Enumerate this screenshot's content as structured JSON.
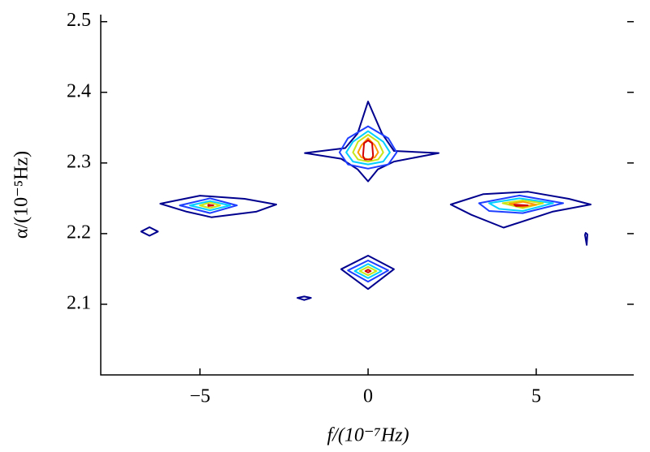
{
  "chart_data": {
    "type": "contour",
    "xlabel": "f/(10⁻⁷Hz)",
    "ylabel": "α/(10⁻⁵Hz)",
    "xlim": [
      -7.95,
      7.9
    ],
    "ylim": [
      2.0,
      2.51
    ],
    "xticks": [
      {
        "value": -5,
        "label": "−5"
      },
      0,
      5
    ],
    "yticks": [
      2.1,
      2.2,
      2.3,
      2.4,
      2.5
    ],
    "series": [
      {
        "color": "#00008f",
        "x": [
          0,
          0.41,
          0.77,
          2.1,
          0.77,
          0.29,
          0,
          -0.31,
          -0.8,
          -1.88,
          -0.68,
          -0.31
        ],
        "y": [
          2.387,
          2.342,
          2.317,
          2.314,
          2.302,
          2.291,
          2.274,
          2.291,
          2.306,
          2.314,
          2.321,
          2.342
        ]
      },
      {
        "color": "#1f3fff",
        "x": [
          0,
          0.6,
          0.85,
          0.6,
          0,
          -0.6,
          -0.85,
          -0.6
        ],
        "y": [
          2.352,
          2.335,
          2.315,
          2.298,
          2.292,
          2.298,
          2.315,
          2.335
        ]
      },
      {
        "color": "#00cfff",
        "x": [
          0,
          0.45,
          0.65,
          0.45,
          0,
          -0.45,
          -0.65,
          -0.45
        ],
        "y": [
          2.345,
          2.33,
          2.315,
          2.302,
          2.298,
          2.302,
          2.315,
          2.33
        ]
      },
      {
        "color": "#c8e61a",
        "x": [
          0,
          0.3,
          0.45,
          0.3,
          0,
          -0.3,
          -0.45,
          -0.3
        ],
        "y": [
          2.34,
          2.33,
          2.315,
          2.305,
          2.302,
          2.305,
          2.315,
          2.33
        ]
      },
      {
        "color": "#ff9a00",
        "x": [
          0,
          0.2,
          0.3,
          0.2,
          0,
          -0.2,
          -0.3,
          -0.2
        ],
        "y": [
          2.335,
          2.325,
          2.315,
          2.308,
          2.305,
          2.308,
          2.315,
          2.325
        ]
      },
      {
        "color": "#d40000",
        "x": [
          0,
          0.12,
          0.15,
          0.1,
          -0.1,
          -0.15,
          -0.12
        ],
        "y": [
          2.332,
          2.328,
          2.31,
          2.305,
          2.305,
          2.31,
          2.328
        ]
      },
      {
        "color": "#00008f",
        "x": [
          -6.18,
          -5.0,
          -3.67,
          -2.73,
          -3.33,
          -4.66,
          -5.39
        ],
        "y": [
          2.2424,
          2.2537,
          2.2492,
          2.2412,
          2.231,
          2.2232,
          2.231
        ]
      },
      {
        "color": "#1f3fff",
        "x": [
          -5.6,
          -4.7,
          -3.9,
          -4.7
        ],
        "y": [
          2.24,
          2.25,
          2.24,
          2.229
        ]
      },
      {
        "color": "#00cfff",
        "x": [
          -5.3,
          -4.7,
          -4.1,
          -4.7
        ],
        "y": [
          2.24,
          2.246,
          2.24,
          2.233
        ]
      },
      {
        "color": "#c8e61a",
        "x": [
          -5.0,
          -4.7,
          -4.4,
          -4.7
        ],
        "y": [
          2.24,
          2.244,
          2.24,
          2.236
        ]
      },
      {
        "color": "#d40000",
        "x": [
          -4.75,
          -4.6,
          -4.75
        ],
        "y": [
          2.241,
          2.24,
          2.239
        ]
      },
      {
        "color": "#00008f",
        "x": [
          2.46,
          3.43,
          4.76,
          5.97,
          6.62,
          5.48,
          4.03,
          3.07
        ],
        "y": [
          2.2412,
          2.2559,
          2.2593,
          2.2492,
          2.2412,
          2.231,
          2.2085,
          2.2266
        ]
      },
      {
        "color": "#1f3fff",
        "x": [
          3.3,
          4.5,
          5.8,
          4.6,
          3.6
        ],
        "y": [
          2.243,
          2.254,
          2.243,
          2.229,
          2.232
        ]
      },
      {
        "color": "#00cfff",
        "x": [
          3.6,
          4.5,
          5.5,
          4.6,
          3.9
        ],
        "y": [
          2.243,
          2.25,
          2.243,
          2.232,
          2.235
        ]
      },
      {
        "color": "#c8e61a",
        "x": [
          4.0,
          4.6,
          5.2,
          4.6
        ],
        "y": [
          2.243,
          2.247,
          2.243,
          2.236
        ]
      },
      {
        "color": "#ff9a00",
        "x": [
          4.2,
          4.6,
          5.0,
          4.6
        ],
        "y": [
          2.242,
          2.245,
          2.241,
          2.238
        ]
      },
      {
        "color": "#d40000",
        "x": [
          4.35,
          4.75,
          4.4
        ],
        "y": [
          2.241,
          2.24,
          2.239
        ]
      },
      {
        "color": "#00008f",
        "x": [
          0,
          0.77,
          0,
          -0.8
        ],
        "y": [
          2.1689,
          2.1497,
          2.1215,
          2.1497
        ]
      },
      {
        "color": "#1f3fff",
        "x": [
          0,
          0.6,
          0,
          -0.6
        ],
        "y": [
          2.162,
          2.148,
          2.132,
          2.148
        ]
      },
      {
        "color": "#00cfff",
        "x": [
          0,
          0.4,
          0,
          -0.4
        ],
        "y": [
          2.157,
          2.147,
          2.137,
          2.147
        ]
      },
      {
        "color": "#c8e61a",
        "x": [
          0,
          0.25,
          0,
          -0.25
        ],
        "y": [
          2.153,
          2.147,
          2.141,
          2.147
        ]
      },
      {
        "color": "#d40000",
        "x": [
          0,
          0.08,
          0,
          -0.08
        ],
        "y": [
          2.149,
          2.147,
          2.145,
          2.147
        ]
      },
      {
        "color": "#00008f",
        "x": [
          -6.75,
          -6.5,
          -6.25,
          -6.5
        ],
        "y": [
          2.203,
          2.209,
          2.203,
          2.197
        ]
      },
      {
        "color": "#00008f",
        "x": [
          -2.1,
          -1.9,
          -1.7,
          -1.9
        ],
        "y": [
          2.109,
          2.111,
          2.109,
          2.106
        ]
      },
      {
        "color": "#00008f",
        "x": [
          6.47,
          6.52,
          6.5,
          6.45
        ],
        "y": [
          2.201,
          2.199,
          2.184,
          2.198
        ]
      }
    ]
  }
}
